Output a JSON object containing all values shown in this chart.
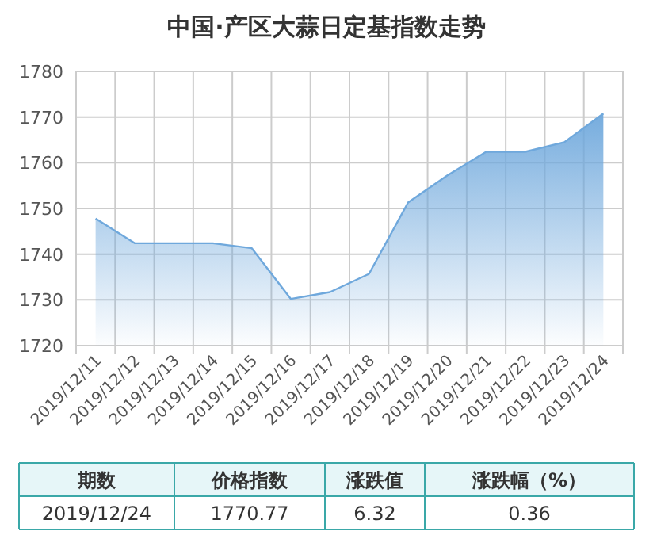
{
  "chart_data": {
    "type": "area",
    "title": "中国·产区大蒜日定基指数走势",
    "categories": [
      "2019/12/11",
      "2019/12/12",
      "2019/12/13",
      "2019/12/14",
      "2019/12/15",
      "2019/12/16",
      "2019/12/17",
      "2019/12/18",
      "2019/12/19",
      "2019/12/20",
      "2019/12/21",
      "2019/12/22",
      "2019/12/23",
      "2019/12/24"
    ],
    "series": [
      {
        "color": "#6fa8dc",
        "values": [
          1747.8,
          1742.4,
          1742.4,
          1742.4,
          1741.3,
          1730.2,
          1731.7,
          1735.7,
          1751.3,
          1757.2,
          1762.4,
          1762.4,
          1764.5,
          1770.77
        ]
      }
    ],
    "ylim": [
      1720,
      1780
    ],
    "yticks": [
      1720,
      1730,
      1740,
      1750,
      1760,
      1770,
      1780
    ],
    "grid": true,
    "annotations": [
      "期数",
      "价格指数",
      "涨跌值",
      "涨跌幅（%）",
      "2019/12/24",
      "1770.77",
      "6.32",
      "0.36"
    ]
  }
}
